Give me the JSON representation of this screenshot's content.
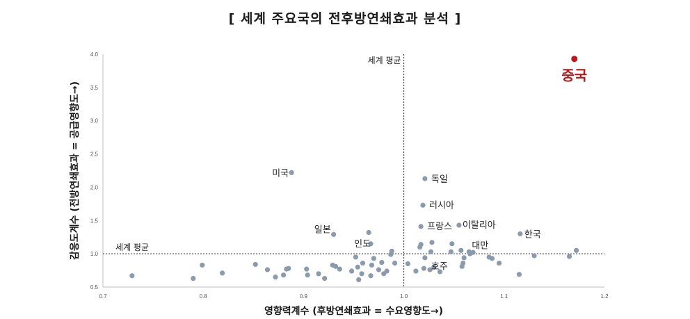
{
  "chart_data": {
    "type": "scatter",
    "title": "[ 세계 주요국의 전후방연쇄효과 분석 ]",
    "xlabel": "영향력계수 (후방연쇄효과 = 수요영향도→)",
    "ylabel": "감응도계수 (전방연쇄효과 = 공급영향도→)",
    "xlim": [
      0.7,
      1.2
    ],
    "ylim": [
      0.5,
      4.0
    ],
    "xticks": [
      "0.7",
      "0.8",
      "0.9",
      "1.0",
      "1.1",
      "1.2"
    ],
    "yticks": [
      "0.5",
      "1.0",
      "1.5",
      "2.0",
      "2.5",
      "3.0",
      "3.5",
      "4.0"
    ],
    "reference_lines": {
      "x_avg": 1.0,
      "y_avg": 1.0,
      "x_label": "세계 평균",
      "y_label": "세계 평균"
    },
    "colors": {
      "point": "#8c9bab",
      "highlight": "#c0171c",
      "line": "#222222"
    },
    "labeled_points": [
      {
        "label": "중국",
        "x": 1.17,
        "y": 3.93,
        "highlight": true
      },
      {
        "label": "미국",
        "x": 0.888,
        "y": 2.22
      },
      {
        "label": "독일",
        "x": 1.021,
        "y": 2.13
      },
      {
        "label": "러시아",
        "x": 1.019,
        "y": 1.73
      },
      {
        "label": "프랑스",
        "x": 1.017,
        "y": 1.41
      },
      {
        "label": "이탈리아",
        "x": 1.055,
        "y": 1.43
      },
      {
        "label": "한국",
        "x": 1.116,
        "y": 1.3
      },
      {
        "label": "일본",
        "x": 0.93,
        "y": 1.29
      },
      {
        "label": "인도",
        "x": 0.967,
        "y": 1.15
      },
      {
        "label": "대만",
        "x": 1.065,
        "y": 1.03
      },
      {
        "label": "호주",
        "x": 1.03,
        "y": 0.8
      }
    ],
    "points": [
      {
        "x": 0.729,
        "y": 0.67
      },
      {
        "x": 0.79,
        "y": 0.63
      },
      {
        "x": 0.799,
        "y": 0.83
      },
      {
        "x": 0.819,
        "y": 0.71
      },
      {
        "x": 0.852,
        "y": 0.84
      },
      {
        "x": 0.864,
        "y": 0.76
      },
      {
        "x": 0.872,
        "y": 0.65
      },
      {
        "x": 0.88,
        "y": 0.68
      },
      {
        "x": 0.883,
        "y": 0.77
      },
      {
        "x": 0.885,
        "y": 0.78
      },
      {
        "x": 0.903,
        "y": 0.77
      },
      {
        "x": 0.904,
        "y": 0.68
      },
      {
        "x": 0.915,
        "y": 0.7
      },
      {
        "x": 0.921,
        "y": 0.63
      },
      {
        "x": 0.929,
        "y": 0.83
      },
      {
        "x": 0.932,
        "y": 0.81
      },
      {
        "x": 0.936,
        "y": 0.77
      },
      {
        "x": 0.948,
        "y": 0.74
      },
      {
        "x": 0.952,
        "y": 0.95
      },
      {
        "x": 0.954,
        "y": 0.8
      },
      {
        "x": 0.955,
        "y": 0.61
      },
      {
        "x": 0.958,
        "y": 0.7
      },
      {
        "x": 0.959,
        "y": 0.86
      },
      {
        "x": 0.965,
        "y": 1.32
      },
      {
        "x": 0.967,
        "y": 0.67
      },
      {
        "x": 0.968,
        "y": 0.83
      },
      {
        "x": 0.97,
        "y": 0.93
      },
      {
        "x": 0.975,
        "y": 0.76
      },
      {
        "x": 0.978,
        "y": 0.87
      },
      {
        "x": 0.98,
        "y": 0.7
      },
      {
        "x": 0.983,
        "y": 0.74
      },
      {
        "x": 0.987,
        "y": 0.99
      },
      {
        "x": 0.988,
        "y": 1.04
      },
      {
        "x": 0.991,
        "y": 0.86
      },
      {
        "x": 1.004,
        "y": 0.85
      },
      {
        "x": 1.012,
        "y": 0.74
      },
      {
        "x": 1.017,
        "y": 1.14
      },
      {
        "x": 1.016,
        "y": 1.1
      },
      {
        "x": 1.02,
        "y": 0.78
      },
      {
        "x": 1.021,
        "y": 0.94
      },
      {
        "x": 1.026,
        "y": 0.76
      },
      {
        "x": 1.027,
        "y": 1.03
      },
      {
        "x": 1.028,
        "y": 1.17
      },
      {
        "x": 1.036,
        "y": 0.73
      },
      {
        "x": 1.047,
        "y": 1.03
      },
      {
        "x": 1.048,
        "y": 1.15
      },
      {
        "x": 1.057,
        "y": 1.05
      },
      {
        "x": 1.058,
        "y": 0.81
      },
      {
        "x": 1.059,
        "y": 0.86
      },
      {
        "x": 1.06,
        "y": 0.94
      },
      {
        "x": 1.066,
        "y": 1.0
      },
      {
        "x": 1.069,
        "y": 1.02
      },
      {
        "x": 1.085,
        "y": 0.95
      },
      {
        "x": 1.088,
        "y": 0.93
      },
      {
        "x": 1.095,
        "y": 0.86
      },
      {
        "x": 1.115,
        "y": 0.69
      },
      {
        "x": 1.13,
        "y": 0.97
      },
      {
        "x": 1.165,
        "y": 0.96
      },
      {
        "x": 1.172,
        "y": 1.05
      }
    ]
  }
}
